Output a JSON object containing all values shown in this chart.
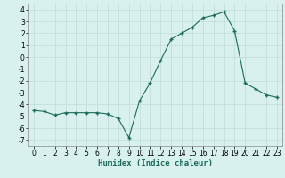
{
  "x": [
    0,
    1,
    2,
    3,
    4,
    5,
    6,
    7,
    8,
    9,
    10,
    11,
    12,
    13,
    14,
    15,
    16,
    17,
    18,
    19,
    20,
    21,
    22,
    23
  ],
  "y": [
    -4.5,
    -4.6,
    -4.9,
    -4.7,
    -4.7,
    -4.7,
    -4.7,
    -4.8,
    -5.2,
    -6.8,
    -3.7,
    -2.2,
    -0.3,
    1.5,
    2.0,
    2.5,
    3.3,
    3.5,
    3.8,
    2.2,
    -2.2,
    -2.7,
    -3.2,
    -3.4
  ],
  "xlabel": "Humidex (Indice chaleur)",
  "xlim": [
    -0.5,
    23.5
  ],
  "ylim": [
    -7.5,
    4.5
  ],
  "yticks": [
    -7,
    -6,
    -5,
    -4,
    -3,
    -2,
    -1,
    0,
    1,
    2,
    3,
    4
  ],
  "xticks": [
    0,
    1,
    2,
    3,
    4,
    5,
    6,
    7,
    8,
    9,
    10,
    11,
    12,
    13,
    14,
    15,
    16,
    17,
    18,
    19,
    20,
    21,
    22,
    23
  ],
  "line_color": "#1a6b5a",
  "marker_color": "#1a6b5a",
  "bg_color": "#d8f0ee",
  "grid_color": "#c0ddd8",
  "axis_fontsize": 6.0,
  "tick_fontsize": 5.5,
  "xlabel_fontsize": 6.5
}
